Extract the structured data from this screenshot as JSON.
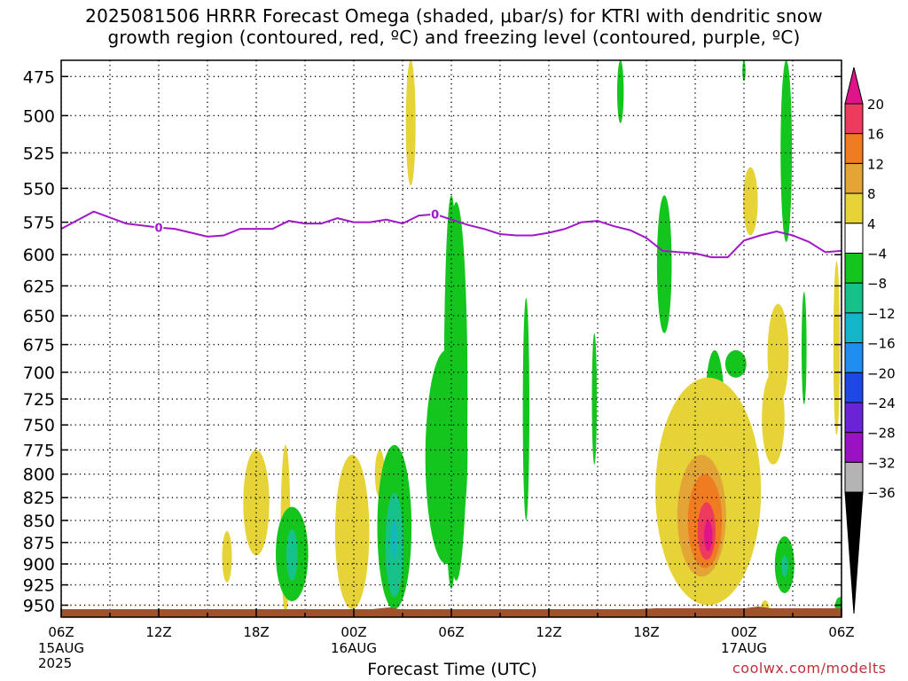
{
  "chart_data": {
    "type": "contour",
    "title_lines": [
      "2025081506 HRRR Forecast Omega (shaded, μbar/s) for KTRI with dendritic snow",
      "growth region (contoured, red, ºC) and freezing level (contoured, purple, ºC)"
    ],
    "xlabel": "Forecast Time (UTC)",
    "ylabel": "",
    "credit": "coolwx.com/modelts",
    "y_axis": {
      "ticks": [
        475,
        500,
        525,
        550,
        575,
        600,
        625,
        650,
        675,
        700,
        725,
        750,
        775,
        800,
        825,
        850,
        875,
        900,
        925,
        950
      ],
      "range": [
        465,
        965
      ],
      "scale": "log-pressure",
      "inverted": true
    },
    "x_axis": {
      "ticks": [
        {
          "h": 0,
          "label": "06Z",
          "sub": [
            "15AUG",
            "2025"
          ]
        },
        {
          "h": 6,
          "label": "12Z",
          "sub": []
        },
        {
          "h": 12,
          "label": "18Z",
          "sub": []
        },
        {
          "h": 18,
          "label": "00Z",
          "sub": [
            "16AUG"
          ]
        },
        {
          "h": 24,
          "label": "06Z",
          "sub": []
        },
        {
          "h": 30,
          "label": "12Z",
          "sub": []
        },
        {
          "h": 36,
          "label": "18Z",
          "sub": []
        },
        {
          "h": 42,
          "label": "00Z",
          "sub": [
            "17AUG"
          ]
        },
        {
          "h": 48,
          "label": "06Z",
          "sub": []
        }
      ],
      "range": [
        0,
        48
      ]
    },
    "grid": true,
    "colorbar": {
      "labels": [
        "20",
        "16",
        "12",
        "8",
        "4",
        "−4",
        "−8",
        "−12",
        "−16",
        "−20",
        "−24",
        "−28",
        "−32",
        "−36"
      ],
      "colors": [
        "#ed3a5e",
        "#f07c22",
        "#e3a536",
        "#e6d338",
        "#ffffff",
        "#14c51e",
        "#16c28a",
        "#14b5c8",
        "#1f8ef0",
        "#1d48e6",
        "#6a24d6",
        "#9b12c4",
        "#b4b4b4"
      ],
      "top_cap_color": "#e0148a",
      "bottom_cap_color": "#000000"
    },
    "freezing_level": {
      "color": "#a018c8",
      "label": "0",
      "points": [
        [
          0,
          580
        ],
        [
          2,
          567
        ],
        [
          4,
          576
        ],
        [
          6,
          579
        ],
        [
          7,
          580
        ],
        [
          8,
          583
        ],
        [
          9,
          586
        ],
        [
          10,
          585
        ],
        [
          11,
          580
        ],
        [
          12,
          580
        ],
        [
          13,
          580
        ],
        [
          14,
          574
        ],
        [
          15,
          576
        ],
        [
          16,
          576
        ],
        [
          17,
          572
        ],
        [
          18,
          575
        ],
        [
          19,
          575
        ],
        [
          20,
          573
        ],
        [
          21,
          576
        ],
        [
          22,
          570
        ],
        [
          23,
          569
        ],
        [
          24,
          573
        ],
        [
          25,
          577
        ],
        [
          26,
          580
        ],
        [
          27,
          584
        ],
        [
          28,
          585
        ],
        [
          29,
          585
        ],
        [
          30,
          583
        ],
        [
          31,
          580
        ],
        [
          32,
          575
        ],
        [
          33,
          574
        ],
        [
          34,
          578
        ],
        [
          35,
          581
        ],
        [
          36,
          587
        ],
        [
          37,
          597
        ],
        [
          38,
          598
        ],
        [
          39,
          599
        ],
        [
          40,
          602
        ],
        [
          41,
          602
        ],
        [
          42,
          589
        ],
        [
          43,
          585
        ],
        [
          44,
          582
        ],
        [
          45,
          585
        ],
        [
          46,
          590
        ],
        [
          47,
          598
        ],
        [
          48,
          597
        ]
      ]
    },
    "omega_regions": [
      {
        "h": 21.5,
        "p0": 465,
        "p1": 548,
        "w": 0.6,
        "v": 4
      },
      {
        "h": 34.4,
        "p0": 465,
        "p1": 505,
        "w": 0.4,
        "v": -4
      },
      {
        "h": 42.0,
        "p0": 465,
        "p1": 478,
        "w": 0.2,
        "v": -4
      },
      {
        "h": 44.6,
        "p0": 465,
        "p1": 590,
        "w": 0.7,
        "v": -4
      },
      {
        "h": 42.4,
        "p0": 535,
        "p1": 585,
        "w": 0.9,
        "v": 4
      },
      {
        "h": 37.1,
        "p0": 555,
        "p1": 665,
        "w": 0.9,
        "v": -4
      },
      {
        "h": 24.0,
        "p0": 555,
        "p1": 930,
        "w": 0.9,
        "v": -4
      },
      {
        "h": 24.3,
        "p0": 560,
        "p1": 920,
        "w": 1.4,
        "v": -4
      },
      {
        "h": 23.7,
        "p0": 680,
        "p1": 900,
        "w": 2.6,
        "v": -4
      },
      {
        "h": 28.6,
        "p0": 635,
        "p1": 850,
        "w": 0.4,
        "v": -4
      },
      {
        "h": 32.8,
        "p0": 665,
        "p1": 790,
        "w": 0.3,
        "v": -4
      },
      {
        "h": 44.1,
        "p0": 640,
        "p1": 730,
        "w": 1.3,
        "v": 4
      },
      {
        "h": 43.8,
        "p0": 700,
        "p1": 790,
        "w": 1.4,
        "v": 4
      },
      {
        "h": 45.7,
        "p0": 630,
        "p1": 730,
        "w": 0.3,
        "v": -4
      },
      {
        "h": 47.7,
        "p0": 605,
        "p1": 760,
        "w": 0.4,
        "v": 4
      },
      {
        "h": 40.2,
        "p0": 680,
        "p1": 800,
        "w": 1.2,
        "v": -4
      },
      {
        "h": 40.2,
        "p0": 730,
        "p1": 770,
        "w": 0.4,
        "v": -12
      },
      {
        "h": 41.5,
        "p0": 680,
        "p1": 705,
        "w": 1.3,
        "v": -4
      },
      {
        "h": 39.8,
        "p0": 705,
        "p1": 950,
        "w": 6.5,
        "v": 4
      },
      {
        "h": 39.8,
        "p0": 750,
        "p1": 935,
        "w": 5.0,
        "v": 8
      },
      {
        "h": 39.4,
        "p0": 780,
        "p1": 915,
        "w": 3.0,
        "v": 12
      },
      {
        "h": 39.6,
        "p0": 800,
        "p1": 905,
        "w": 2.1,
        "v": 16
      },
      {
        "h": 39.7,
        "p0": 830,
        "p1": 895,
        "w": 1.1,
        "v": 20
      },
      {
        "h": 39.8,
        "p0": 850,
        "p1": 885,
        "w": 0.5,
        "v": 24
      },
      {
        "h": 13.8,
        "p0": 770,
        "p1": 958,
        "w": 0.6,
        "v": 4
      },
      {
        "h": 12.0,
        "p0": 775,
        "p1": 890,
        "w": 1.6,
        "v": 4
      },
      {
        "h": 10.2,
        "p0": 862,
        "p1": 922,
        "w": 0.6,
        "v": 4
      },
      {
        "h": 14.2,
        "p0": 835,
        "p1": 945,
        "w": 2.0,
        "v": -4
      },
      {
        "h": 14.2,
        "p0": 860,
        "p1": 920,
        "w": 0.7,
        "v": -8
      },
      {
        "h": 17.9,
        "p0": 780,
        "p1": 955,
        "w": 2.1,
        "v": 4
      },
      {
        "h": 18.0,
        "p0": 830,
        "p1": 875,
        "w": 0.6,
        "v": 8
      },
      {
        "h": 19.6,
        "p0": 775,
        "p1": 825,
        "w": 0.6,
        "v": 4
      },
      {
        "h": 20.5,
        "p0": 770,
        "p1": 955,
        "w": 2.1,
        "v": -4
      },
      {
        "h": 20.5,
        "p0": 820,
        "p1": 940,
        "w": 1.1,
        "v": -8
      },
      {
        "h": 20.5,
        "p0": 850,
        "p1": 895,
        "w": 0.3,
        "v": -12
      },
      {
        "h": 44.5,
        "p0": 868,
        "p1": 935,
        "w": 1.2,
        "v": -4
      },
      {
        "h": 44.5,
        "p0": 890,
        "p1": 915,
        "w": 0.4,
        "v": -8
      },
      {
        "h": 43.3,
        "p0": 944,
        "p1": 965,
        "w": 0.5,
        "v": 4
      },
      {
        "h": 47.9,
        "p0": 940,
        "p1": 965,
        "w": 0.6,
        "v": -4
      }
    ]
  }
}
